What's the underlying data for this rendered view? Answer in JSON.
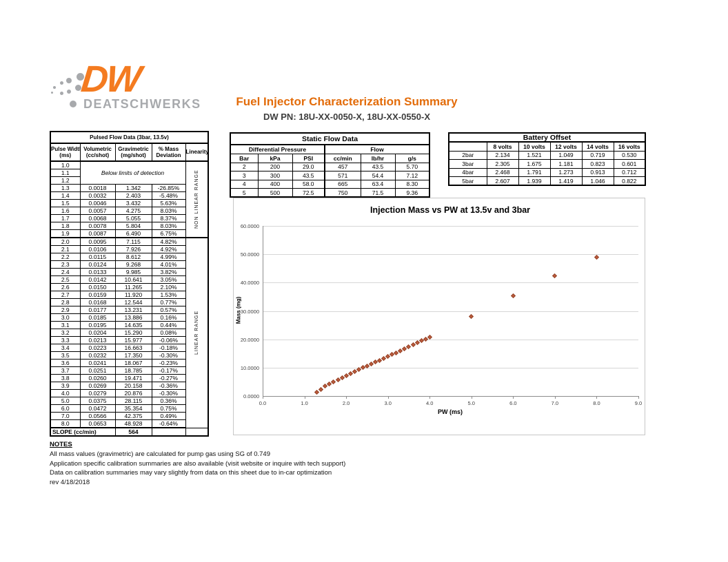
{
  "header": {
    "logo_dw": "DW",
    "logo_name": "DEATSCHWERKS",
    "title": "Fuel Injector Characterization Summary",
    "subtitle": "DW PN: 18U-XX-0050-X, 18U-XX-0550-X"
  },
  "colors": {
    "logo_orange": "#f47b20",
    "title_orange": "#e36c0a",
    "logo_gray": "#a7a9ac",
    "marker_fill": "#bc5b3c",
    "marker_border": "#94442a",
    "gridline": "#d6d6d6",
    "axis": "#8c8c8c"
  },
  "pulsed_flow": {
    "title": "Pulsed Flow Data (3bar, 13.5v)",
    "headers": [
      [
        "Pulse Width",
        "(ms)"
      ],
      [
        "Volumetric",
        "(cc/shot)"
      ],
      [
        "Gravimetric",
        "(mg/shot)"
      ],
      [
        "% Mass",
        "Deviation"
      ],
      [
        "Linearity",
        ""
      ]
    ],
    "below_detection": {
      "pws": [
        "1.0",
        "1.1",
        "1.2"
      ],
      "label": "Below limits of detection"
    },
    "nonlinear_label": "NON LINEAR RANGE",
    "linear_label": "LINEAR RANGE",
    "nonlinear_rows": [
      [
        "1.3",
        "0.0018",
        "1.342",
        "-26.85%"
      ],
      [
        "1.4",
        "0.0032",
        "2.403",
        "-5.48%"
      ],
      [
        "1.5",
        "0.0046",
        "3.432",
        "5.63%"
      ],
      [
        "1.6",
        "0.0057",
        "4.275",
        "8.03%"
      ],
      [
        "1.7",
        "0.0068",
        "5.055",
        "8.37%"
      ],
      [
        "1.8",
        "0.0078",
        "5.804",
        "8.03%"
      ],
      [
        "1.9",
        "0.0087",
        "6.490",
        "6.75%"
      ]
    ],
    "linear_rows": [
      [
        "2.0",
        "0.0095",
        "7.115",
        "4.82%"
      ],
      [
        "2.1",
        "0.0106",
        "7.926",
        "4.92%"
      ],
      [
        "2.2",
        "0.0115",
        "8.612",
        "4.99%"
      ],
      [
        "2.3",
        "0.0124",
        "9.268",
        "4.01%"
      ],
      [
        "2.4",
        "0.0133",
        "9.985",
        "3.82%"
      ],
      [
        "2.5",
        "0.0142",
        "10.641",
        "3.05%"
      ],
      [
        "2.6",
        "0.0150",
        "11.265",
        "2.10%"
      ],
      [
        "2.7",
        "0.0159",
        "11.920",
        "1.53%"
      ],
      [
        "2.8",
        "0.0168",
        "12.544",
        "0.77%"
      ],
      [
        "2.9",
        "0.0177",
        "13.231",
        "0.57%"
      ],
      [
        "3.0",
        "0.0185",
        "13.886",
        "0.16%"
      ],
      [
        "3.1",
        "0.0195",
        "14.635",
        "0.44%"
      ],
      [
        "3.2",
        "0.0204",
        "15.290",
        "0.08%"
      ],
      [
        "3.3",
        "0.0213",
        "15.977",
        "-0.06%"
      ],
      [
        "3.4",
        "0.0223",
        "16.663",
        "-0.18%"
      ],
      [
        "3.5",
        "0.0232",
        "17.350",
        "-0.30%"
      ],
      [
        "3.6",
        "0.0241",
        "18.067",
        "-0.23%"
      ],
      [
        "3.7",
        "0.0251",
        "18.785",
        "-0.17%"
      ],
      [
        "3.8",
        "0.0260",
        "19.471",
        "-0.27%"
      ],
      [
        "3.9",
        "0.0269",
        "20.158",
        "-0.36%"
      ],
      [
        "4.0",
        "0.0279",
        "20.876",
        "-0.30%"
      ],
      [
        "5.0",
        "0.0375",
        "28.115",
        "0.36%"
      ],
      [
        "6.0",
        "0.0472",
        "35.354",
        "0.75%"
      ],
      [
        "7.0",
        "0.0566",
        "42.375",
        "0.49%"
      ],
      [
        "8.0",
        "0.0653",
        "48.928",
        "-0.64%"
      ]
    ],
    "slope_label": "SLOPE (cc/min)",
    "slope_value": "564"
  },
  "static_flow": {
    "title": "Static Flow Data",
    "group_headers": [
      "Differential Pressure",
      "Flow"
    ],
    "col_headers": [
      "Bar",
      "kPa",
      "PSI",
      "cc/min",
      "lb/hr",
      "g/s"
    ],
    "rows": [
      [
        "2",
        "200",
        "29.0",
        "457",
        "43.5",
        "5.70"
      ],
      [
        "3",
        "300",
        "43.5",
        "571",
        "54.4",
        "7.12"
      ],
      [
        "4",
        "400",
        "58.0",
        "665",
        "63.4",
        "8.30"
      ],
      [
        "5",
        "500",
        "72.5",
        "750",
        "71.5",
        "9.36"
      ]
    ]
  },
  "battery_offset": {
    "title": "Battery Offset",
    "col_headers": [
      "",
      "8 volts",
      "10 volts",
      "12 volts",
      "14 volts",
      "16 volts"
    ],
    "rows": [
      [
        "2bar",
        "2.134",
        "1.521",
        "1.049",
        "0.719",
        "0.530"
      ],
      [
        "3bar",
        "2.305",
        "1.675",
        "1.181",
        "0.823",
        "0.601"
      ],
      [
        "4bar",
        "2.468",
        "1.791",
        "1.273",
        "0.913",
        "0.712"
      ],
      [
        "5bar",
        "2.607",
        "1.939",
        "1.419",
        "1.046",
        "0.822"
      ]
    ]
  },
  "chart_data": {
    "type": "scatter",
    "title": "Injection Mass vs PW at 13.5v and 3bar",
    "xlabel": "PW (ms)",
    "ylabel": "Mass (mg)",
    "xlim": [
      0,
      9
    ],
    "ylim": [
      0,
      60
    ],
    "xticks": [
      "0.0",
      "1.0",
      "2.0",
      "3.0",
      "4.0",
      "5.0",
      "6.0",
      "7.0",
      "8.0",
      "9.0"
    ],
    "yticks": [
      "0.0000",
      "10.0000",
      "20.0000",
      "30.0000",
      "40.0000",
      "50.0000",
      "60.0000"
    ],
    "grid": true,
    "legend": false,
    "marker": "diamond",
    "x": [
      1.3,
      1.4,
      1.5,
      1.6,
      1.7,
      1.8,
      1.9,
      2.0,
      2.1,
      2.2,
      2.3,
      2.4,
      2.5,
      2.6,
      2.7,
      2.8,
      2.9,
      3.0,
      3.1,
      3.2,
      3.3,
      3.4,
      3.5,
      3.6,
      3.7,
      3.8,
      3.9,
      4.0,
      5.0,
      6.0,
      7.0,
      8.0
    ],
    "y": [
      1.342,
      2.403,
      3.432,
      4.275,
      5.055,
      5.804,
      6.49,
      7.115,
      7.926,
      8.612,
      9.268,
      9.985,
      10.641,
      11.265,
      11.92,
      12.544,
      13.231,
      13.886,
      14.635,
      15.29,
      15.977,
      16.663,
      17.35,
      18.067,
      18.785,
      19.471,
      20.158,
      20.876,
      28.115,
      35.354,
      42.375,
      48.928
    ]
  },
  "notes": {
    "heading": "NOTES",
    "lines": [
      "All mass values (gravimetric) are calculated for pump gas using SG of 0.749",
      "Application specific calibration summaries are also available (visit website or inquire with tech support)",
      "Data on calibration summaries may vary slightly from data on this sheet due to in-car optimization",
      "rev 4/18/2018"
    ]
  }
}
